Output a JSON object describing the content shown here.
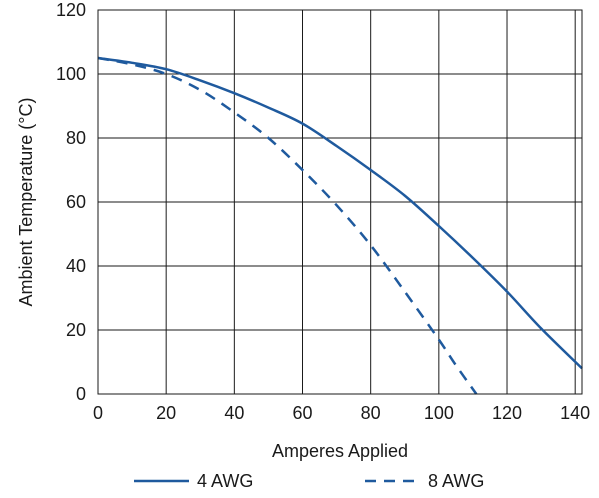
{
  "chart_data": {
    "type": "line",
    "title": "",
    "xlabel": "Amperes Applied",
    "ylabel": "Ambient Temperature (°C)",
    "xlim": [
      0,
      142
    ],
    "ylim": [
      0,
      120
    ],
    "x_ticks": [
      0,
      20,
      40,
      60,
      80,
      100,
      120,
      140
    ],
    "y_ticks": [
      0,
      20,
      40,
      60,
      80,
      100,
      120
    ],
    "grid": true,
    "legend_position": "bottom",
    "series": [
      {
        "name": "4 AWG",
        "style": "solid",
        "color": "#1f5a9e",
        "x": [
          0,
          10,
          20,
          30,
          40,
          50,
          60,
          70,
          80,
          90,
          100,
          110,
          120,
          130,
          142
        ],
        "y": [
          105,
          103.5,
          101.5,
          98,
          94,
          89.5,
          84.5,
          77.5,
          70,
          62,
          52.5,
          42.5,
          32,
          20.5,
          8
        ]
      },
      {
        "name": "8 AWG",
        "style": "dashed",
        "color": "#1f5a9e",
        "x": [
          0,
          10,
          20,
          30,
          40,
          50,
          60,
          70,
          80,
          90,
          100,
          105,
          111
        ],
        "y": [
          105,
          103,
          100,
          95,
          88,
          80,
          70,
          59,
          46.5,
          32,
          17,
          9,
          0
        ]
      }
    ]
  }
}
